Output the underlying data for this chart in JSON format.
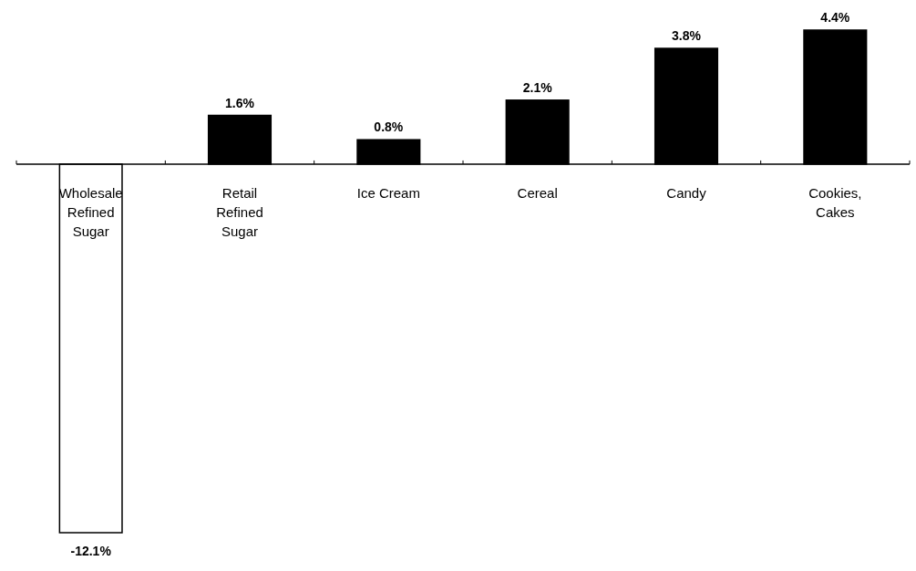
{
  "chart_data": {
    "type": "bar",
    "categories": [
      "Wholesale Refined Sugar",
      "Retail Refined Sugar",
      "Ice Cream",
      "Cereal",
      "Candy",
      "Cookies, Cakes"
    ],
    "values": [
      -12.1,
      1.6,
      0.8,
      2.1,
      3.8,
      4.4
    ],
    "colors": [
      "#ffffff",
      "#000000",
      "#000000",
      "#000000",
      "#000000",
      "#000000"
    ],
    "value_labels": [
      "-12.1%",
      "1.6%",
      "0.8%",
      "2.1%",
      "3.8%",
      "4.4%"
    ]
  }
}
